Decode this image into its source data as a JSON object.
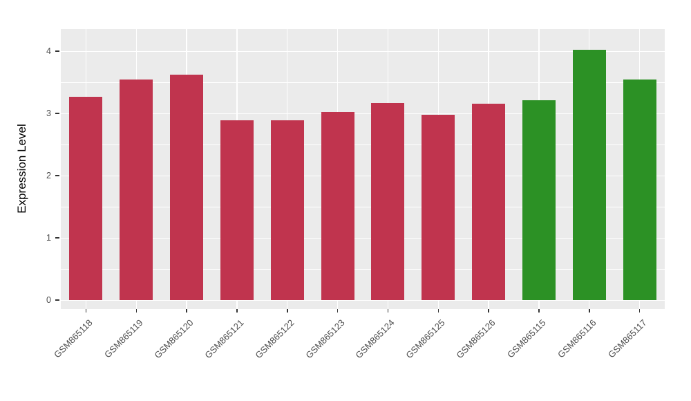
{
  "chart_data": {
    "type": "bar",
    "title": "",
    "xlabel": "",
    "ylabel": "Expression Level",
    "ylim": [
      0,
      4.2
    ],
    "yticks": [
      0,
      1,
      2,
      3,
      4
    ],
    "minor_yticks": [
      0.5,
      1.5,
      2.5,
      3.5
    ],
    "categories": [
      "GSM865118",
      "GSM865119",
      "GSM865120",
      "GSM865121",
      "GSM865122",
      "GSM865123",
      "GSM865124",
      "GSM865125",
      "GSM865126",
      "GSM865115",
      "GSM865116",
      "GSM865117"
    ],
    "values": [
      3.27,
      3.55,
      3.62,
      2.89,
      2.89,
      3.02,
      3.17,
      2.98,
      3.16,
      3.21,
      4.02,
      3.55
    ],
    "colors": [
      "#C0344E",
      "#C0344E",
      "#C0344E",
      "#C0344E",
      "#C0344E",
      "#C0344E",
      "#C0344E",
      "#C0344E",
      "#C0344E",
      "#2C9125",
      "#2C9125",
      "#2C9125"
    ],
    "group_colors": {
      "red": "#C0344E",
      "green": "#2C9125"
    },
    "legend": "none",
    "grid": "on",
    "panel_bg": "#EBEBEB",
    "grid_color": "#FFFFFF",
    "tick_label_color": "#4D4D4D"
  }
}
